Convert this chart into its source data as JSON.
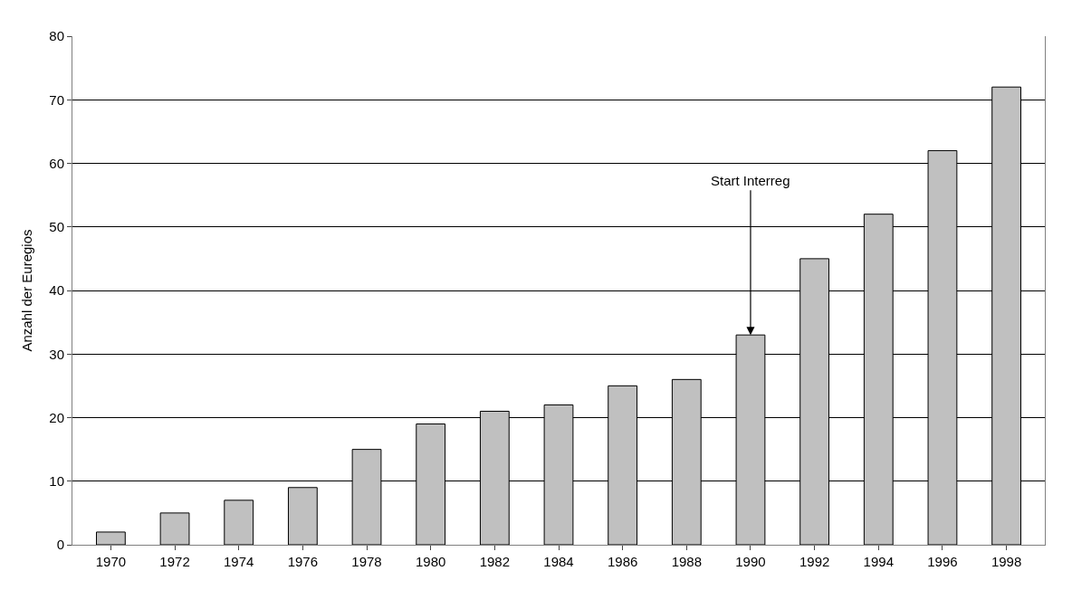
{
  "chart_data": {
    "type": "bar",
    "ylabel": "Anzahl der Euregios",
    "categories": [
      "1970",
      "1972",
      "1974",
      "1976",
      "1978",
      "1980",
      "1982",
      "1984",
      "1986",
      "1988",
      "1990",
      "1992",
      "1994",
      "1996",
      "1998"
    ],
    "values": [
      2,
      5,
      7,
      9,
      15,
      19,
      21,
      22,
      25,
      26,
      33,
      45,
      52,
      62,
      72
    ],
    "color": "#c0c0c0",
    "ylim": [
      0,
      80
    ],
    "yticks": [
      0,
      10,
      20,
      30,
      40,
      50,
      60,
      70,
      80
    ],
    "grid": "y",
    "annotations": [
      {
        "text": "Start Interreg",
        "x": "1990",
        "y": 33
      }
    ]
  }
}
